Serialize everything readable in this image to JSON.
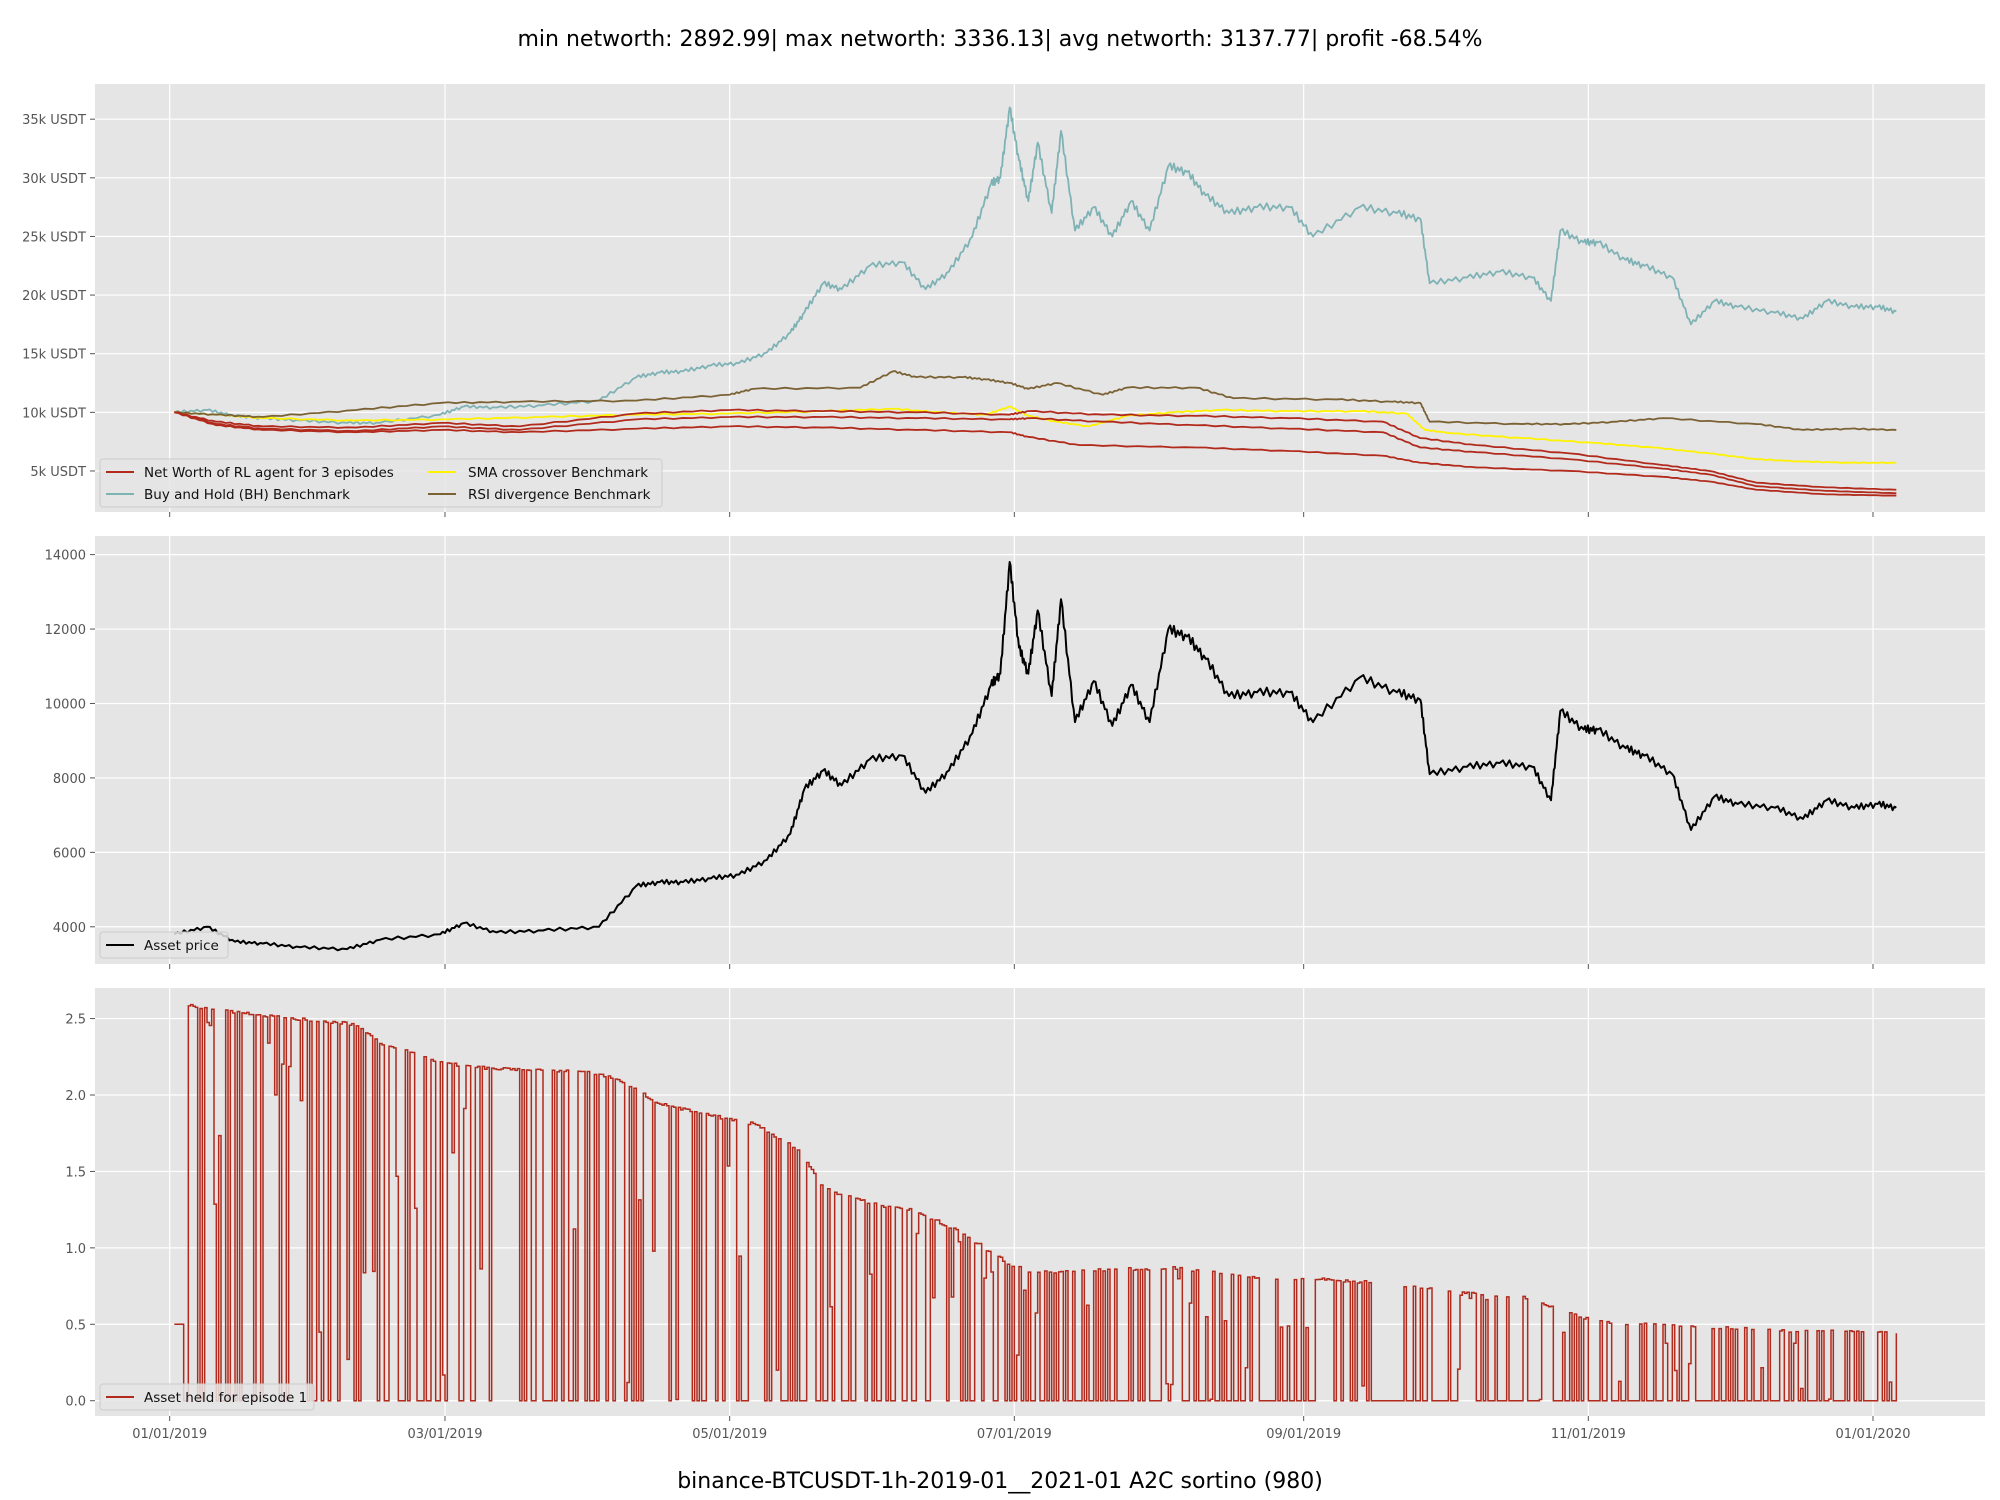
{
  "chart_data": {
    "title": "min networth: 2892.99| max networth: 3336.13| avg networth: 3137.77| profit -68.54%",
    "footer": "binance-BTCUSDT-1h-2019-01__2021-01 A2C sortino  (980)",
    "x_tick_labels": [
      "01/01/2019",
      "03/01/2019",
      "05/01/2019",
      "07/01/2019",
      "09/01/2019",
      "11/01/2019",
      "01/01/2020"
    ],
    "x_tick_days": [
      0,
      59,
      120,
      181,
      243,
      304,
      365
    ],
    "x_range_days": [
      -16,
      389
    ],
    "panels": [
      {
        "type": "line",
        "ylim": [
          1500,
          38000
        ],
        "y_ticks": [
          5000,
          10000,
          15000,
          20000,
          25000,
          30000,
          35000
        ],
        "y_tick_labels": [
          "5k USDT",
          "10k USDT",
          "15k USDT",
          "20k USDT",
          "25k USDT",
          "30k USDT",
          "35k USDT"
        ],
        "legend_position": "lower-left",
        "legend": [
          "Net Worth of RL agent for 3 episodes",
          "Buy and Hold (BH) Benchmark",
          "SMA crossover Benchmark",
          "RSI divergence Benchmark"
        ],
        "series": [
          {
            "name": "Buy and Hold (BH) Benchmark",
            "color": "#7fb2b5",
            "x": [
              1,
              8,
              14,
              20,
              28,
              38,
              45,
              58,
              63,
              70,
              80,
              92,
              100,
              105,
              110,
              116,
              122,
              128,
              133,
              136,
              140,
              144,
              150,
              157,
              162,
              167,
              172,
              176,
              178,
              180,
              182,
              184,
              186,
              189,
              191,
              194,
              198,
              202,
              206,
              210,
              214,
              218,
              222,
              227,
              233,
              240,
              245,
              255,
              263,
              268,
              270,
              278,
              285,
              292,
              296,
              298,
              303,
              306,
              312,
              316,
              322,
              326,
              331,
              336,
              344,
              350,
              355,
              361,
              366,
              370
            ],
            "y": [
              10000,
              10200,
              9700,
              9500,
              9300,
              9100,
              9100,
              9800,
              10500,
              10400,
              10600,
              11000,
              13000,
              13400,
              13500,
              14000,
              14200,
              15100,
              16800,
              18500,
              21000,
              20500,
              22500,
              22800,
              20500,
              22000,
              25000,
              29500,
              30000,
              36000,
              31500,
              28000,
              33000,
              27000,
              34000,
              25500,
              27500,
              25000,
              28000,
              25500,
              31000,
              30500,
              28500,
              27000,
              27500,
              27500,
              25000,
              27500,
              27000,
              26500,
              21000,
              21500,
              22000,
              21500,
              19500,
              25500,
              24500,
              24500,
              23000,
              22500,
              21500,
              17500,
              19500,
              19000,
              18500,
              18000,
              19500,
              19000,
              19000,
              18600
            ]
          },
          {
            "name": "SMA crossover Benchmark",
            "color": "#fff200",
            "x": [
              1,
              10,
              20,
              40,
              60,
              80,
              100,
              120,
              140,
              155,
              165,
              175,
              180,
              184,
              190,
              197,
              205,
              215,
              225,
              240,
              255,
              265,
              269,
              275,
              290,
              305,
              318,
              330,
              340,
              350,
              360,
              370
            ],
            "y": [
              10000,
              9800,
              9500,
              9300,
              9400,
              9600,
              9800,
              9900,
              10100,
              10300,
              10000,
              9800,
              10500,
              9700,
              9200,
              8800,
              9700,
              10000,
              10200,
              10100,
              10100,
              9900,
              8500,
              8200,
              7800,
              7400,
              7000,
              6500,
              6000,
              5800,
              5700,
              5700
            ]
          },
          {
            "name": "RSI divergence Benchmark",
            "color": "#7b6234",
            "x": [
              1,
              10,
              20,
              40,
              58,
              75,
              100,
              120,
              125,
              148,
              155,
              160,
              170,
              175,
              180,
              184,
              190,
              200,
              205,
              220,
              228,
              250,
              262,
              268,
              270,
              290,
              300,
              310,
              320,
              340,
              350,
              360,
              370
            ],
            "y": [
              10000,
              9800,
              9600,
              10200,
              10800,
              10900,
              11000,
              11500,
              12000,
              12100,
              13500,
              13000,
              13000,
              12800,
              12500,
              12000,
              12500,
              11500,
              12100,
              12100,
              11200,
              11100,
              10900,
              10800,
              9200,
              9000,
              9000,
              9200,
              9500,
              9000,
              8500,
              8600,
              8500
            ]
          },
          {
            "name": "Net Worth of RL agent for 3 episodes",
            "color": "#b22a1c",
            "x": [
              1,
              10,
              20,
              40,
              58,
              75,
              100,
              120,
              140,
              160,
              180,
              184,
              200,
              220,
              240,
              260,
              268,
              280,
              300,
              320,
              330,
              340,
              355,
              370
            ],
            "y": [
              10000,
              9200,
              8800,
              8700,
              9100,
              8800,
              9900,
              10200,
              10100,
              10000,
              9800,
              10100,
              9800,
              9700,
              9500,
              9200,
              7800,
              7200,
              6500,
              5500,
              5000,
              4000,
              3600,
              3400
            ]
          },
          {
            "name": "",
            "color": "#b22a1c",
            "x": [
              1,
              10,
              20,
              40,
              58,
              75,
              100,
              120,
              140,
              160,
              180,
              184,
              200,
              220,
              240,
              260,
              268,
              280,
              300,
              320,
              330,
              340,
              355,
              370
            ],
            "y": [
              10000,
              9000,
              8600,
              8400,
              8800,
              8500,
              9400,
              9600,
              9600,
              9500,
              9400,
              9500,
              9200,
              8900,
              8600,
              8300,
              7000,
              6600,
              6000,
              5200,
              4700,
              3700,
              3300,
              3100
            ]
          },
          {
            "name": "",
            "color": "#b22a1c",
            "x": [
              1,
              10,
              20,
              40,
              58,
              75,
              100,
              120,
              140,
              160,
              180,
              184,
              195,
              220,
              240,
              260,
              268,
              280,
              300,
              320,
              330,
              340,
              355,
              370
            ],
            "y": [
              10000,
              8900,
              8500,
              8300,
              8500,
              8300,
              8600,
              8800,
              8700,
              8500,
              8300,
              7900,
              7200,
              7000,
              6700,
              6300,
              5700,
              5300,
              5000,
              4500,
              4100,
              3400,
              3000,
              2900
            ]
          }
        ]
      },
      {
        "type": "line",
        "ylim": [
          3000,
          14500
        ],
        "y_ticks": [
          4000,
          6000,
          8000,
          10000,
          12000,
          14000
        ],
        "y_tick_labels": [
          "4000",
          "6000",
          "8000",
          "10000",
          "12000",
          "14000"
        ],
        "legend_position": "lower-left",
        "legend": [
          "Asset price"
        ],
        "series": [
          {
            "name": "Asset price",
            "color": "#000000",
            "x": [
              1,
              8,
              14,
              20,
              28,
              38,
              45,
              58,
              63,
              70,
              80,
              92,
              100,
              105,
              110,
              116,
              122,
              128,
              133,
              136,
              140,
              144,
              150,
              157,
              162,
              167,
              172,
              176,
              178,
              180,
              182,
              184,
              186,
              189,
              191,
              194,
              198,
              202,
              206,
              210,
              214,
              218,
              222,
              227,
              233,
              240,
              245,
              255,
              263,
              268,
              270,
              278,
              285,
              292,
              296,
              298,
              303,
              306,
              312,
              316,
              322,
              326,
              331,
              336,
              344,
              350,
              355,
              361,
              366,
              370
            ],
            "y": [
              3800,
              4000,
              3600,
              3550,
              3450,
              3400,
              3650,
              3800,
              4100,
              3850,
              3900,
              4000,
              5100,
              5200,
              5200,
              5300,
              5400,
              5800,
              6500,
              7700,
              8200,
              7800,
              8500,
              8600,
              7600,
              8200,
              9200,
              10500,
              10800,
              13800,
              11500,
              10800,
              12500,
              10200,
              12800,
              9500,
              10600,
              9400,
              10500,
              9500,
              12000,
              11800,
              11200,
              10200,
              10300,
              10300,
              9500,
              10700,
              10300,
              10100,
              8100,
              8300,
              8400,
              8300,
              7400,
              9800,
              9300,
              9300,
              8800,
              8600,
              8100,
              6600,
              7500,
              7300,
              7200,
              6900,
              7400,
              7200,
              7300,
              7200
            ]
          }
        ]
      },
      {
        "type": "line",
        "ylim": [
          -0.1,
          2.7
        ],
        "y_ticks": [
          0.0,
          0.5,
          1.0,
          1.5,
          2.0,
          2.5
        ],
        "y_tick_labels": [
          "0.0",
          "0.5",
          "1.0",
          "1.5",
          "2.0",
          "2.5"
        ],
        "legend_position": "lower-left",
        "legend": [
          "Asset held for episode 1"
        ],
        "series": [
          {
            "name": "Asset held for episode 1",
            "color": "#b22a1c",
            "envelope_x": [
              3,
              10,
              20,
              30,
              40,
              45,
              50,
              58,
              70,
              90,
              97,
              105,
              115,
              125,
              135,
              140,
              150,
              160,
              170,
              180,
              185,
              215,
              230,
              250,
              270,
              275,
              290,
              305,
              320,
              345,
              370
            ],
            "envelope_y": [
              2.6,
              2.57,
              2.53,
              2.5,
              2.47,
              2.35,
              2.3,
              2.22,
              2.18,
              2.16,
              2.1,
              1.95,
              1.88,
              1.82,
              1.65,
              1.4,
              1.3,
              1.25,
              1.1,
              0.9,
              0.85,
              0.88,
              0.82,
              0.8,
              0.75,
              0.72,
              0.69,
              0.53,
              0.5,
              0.47,
              0.45
            ]
          }
        ]
      }
    ]
  }
}
